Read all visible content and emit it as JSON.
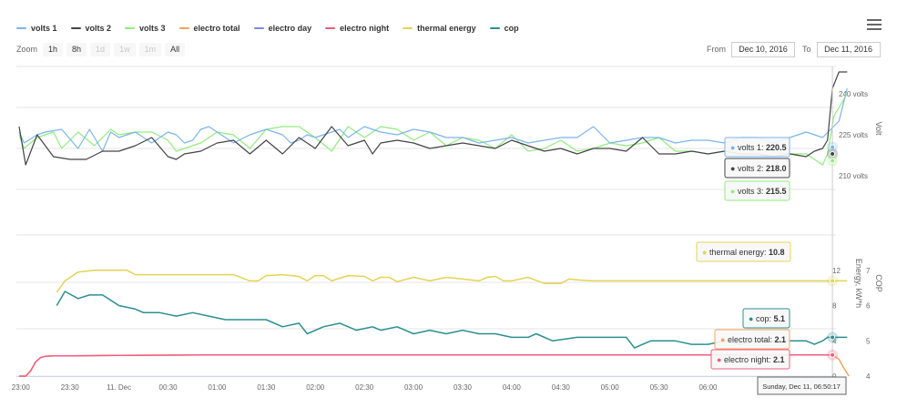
{
  "legend": [
    {
      "label": "volts 1",
      "color": "#7cb5ec"
    },
    {
      "label": "volts 2",
      "color": "#434348"
    },
    {
      "label": "volts 3",
      "color": "#90ed7d"
    },
    {
      "label": "electro total",
      "color": "#f7a35c"
    },
    {
      "label": "electro day",
      "color": "#8085e9"
    },
    {
      "label": "electro night",
      "color": "#f15c80"
    },
    {
      "label": "thermal energy",
      "color": "#e4d354"
    },
    {
      "label": "cop",
      "color": "#2b908f"
    }
  ],
  "zoom": {
    "label": "Zoom",
    "buttons": [
      {
        "label": "1h",
        "enabled": true
      },
      {
        "label": "8h",
        "enabled": true
      },
      {
        "label": "1d",
        "enabled": false
      },
      {
        "label": "1w",
        "enabled": false
      },
      {
        "label": "1m",
        "enabled": false
      },
      {
        "label": "All",
        "enabled": true
      }
    ]
  },
  "range": {
    "from_label": "From",
    "from_value": "Dec 10, 2016",
    "to_label": "To",
    "to_value": "Dec 11, 2016"
  },
  "chart_data": {
    "type": "line",
    "x_tick_labels": [
      "23:00",
      "23:30",
      "11. Dec",
      "00:30",
      "01:00",
      "01:30",
      "02:00",
      "02:30",
      "03:00",
      "03:30",
      "04:00",
      "04:30",
      "05:00",
      "05:30",
      "06:00"
    ],
    "x_range_minutes": [
      -61,
      446
    ],
    "axes": {
      "volt": {
        "title": "Volt",
        "ticks": [
          "210 volts",
          "225 volts",
          "240 volts"
        ],
        "range": [
          205,
          250
        ]
      },
      "energy": {
        "title": "Energy, kW*h",
        "ticks": [
          "0",
          "4",
          "8",
          "12"
        ],
        "range": [
          0,
          16
        ]
      },
      "cop": {
        "title": "COP",
        "ticks": [
          "4",
          "5",
          "6",
          "7"
        ],
        "range": [
          4,
          8
        ]
      }
    },
    "series": [
      {
        "name": "volts 1",
        "axis": "volt",
        "color": "#7cb5ec",
        "x": [
          -61,
          -58,
          -50,
          -45,
          -35,
          -25,
          -18,
          -10,
          -5,
          0,
          5,
          10,
          15,
          20,
          30,
          35,
          40,
          45,
          50,
          55,
          60,
          70,
          80,
          90,
          100,
          105,
          110,
          115,
          120,
          130,
          135,
          140,
          150,
          160,
          170,
          180,
          190,
          200,
          210,
          220,
          230,
          240,
          250,
          260,
          270,
          280,
          290,
          300,
          310,
          320,
          330,
          340,
          350,
          360,
          370,
          380,
          390,
          400,
          410,
          420,
          425,
          430,
          435,
          440,
          445
        ],
        "y": [
          226,
          222,
          225,
          226,
          227,
          220,
          227,
          219,
          226,
          224,
          225,
          226,
          224,
          222,
          226,
          225,
          222,
          223,
          227,
          228,
          226,
          222,
          225,
          227,
          225,
          222,
          223,
          225,
          224,
          226,
          227,
          224,
          228,
          226,
          225,
          227,
          226,
          224,
          224,
          222,
          223,
          224,
          222,
          223,
          224,
          224,
          228,
          222,
          223,
          224,
          224,
          222,
          223,
          223,
          222,
          224,
          224,
          222,
          224,
          226,
          225,
          224,
          227,
          230,
          242
        ]
      },
      {
        "name": "volts 2",
        "axis": "volt",
        "color": "#434348",
        "x": [
          -61,
          -57,
          -50,
          -40,
          -30,
          -20,
          -10,
          0,
          10,
          20,
          30,
          35,
          40,
          50,
          60,
          70,
          80,
          90,
          100,
          110,
          120,
          130,
          140,
          150,
          155,
          160,
          170,
          180,
          190,
          200,
          210,
          220,
          230,
          240,
          250,
          260,
          270,
          280,
          290,
          300,
          310,
          320,
          330,
          340,
          350,
          360,
          370,
          380,
          390,
          400,
          410,
          420,
          425,
          430,
          433,
          436,
          440,
          445
        ],
        "y": [
          228,
          214,
          225,
          217,
          216,
          216,
          219,
          219,
          221,
          224,
          217,
          216,
          218,
          219,
          222,
          223,
          218,
          223,
          218,
          224,
          220,
          228,
          221,
          223,
          218,
          222,
          223,
          222,
          220,
          221,
          222,
          221,
          220,
          223,
          221,
          219,
          220,
          218,
          220,
          220,
          219,
          224,
          218,
          218,
          219,
          218,
          219,
          218,
          218,
          217,
          218,
          217,
          219,
          220,
          223,
          242,
          248,
          248
        ]
      },
      {
        "name": "volts 3",
        "axis": "volt",
        "color": "#90ed7d",
        "x": [
          -61,
          -58,
          -50,
          -40,
          -35,
          -25,
          -15,
          -5,
          0,
          10,
          20,
          30,
          35,
          40,
          50,
          60,
          70,
          80,
          90,
          100,
          110,
          120,
          130,
          140,
          150,
          160,
          170,
          180,
          190,
          200,
          210,
          220,
          230,
          240,
          250,
          260,
          270,
          280,
          290,
          300,
          310,
          320,
          330,
          340,
          350,
          360,
          370,
          380,
          390,
          400,
          410,
          420,
          425,
          430,
          433,
          437,
          445
        ],
        "y": [
          225,
          220,
          224,
          226,
          220,
          226,
          221,
          227,
          225,
          226,
          226,
          223,
          219,
          220,
          222,
          226,
          225,
          220,
          227,
          228,
          228,
          224,
          219,
          228,
          224,
          228,
          227,
          223,
          226,
          221,
          224,
          223,
          220,
          225,
          219,
          220,
          223,
          219,
          220,
          222,
          221,
          222,
          224,
          219,
          219,
          218,
          219,
          221,
          220,
          219,
          218,
          218,
          216,
          214,
          218,
          232,
          240
        ]
      },
      {
        "name": "thermal energy",
        "axis": "energy",
        "color": "#e4d354",
        "x": [
          -38,
          -33,
          -25,
          -15,
          -5,
          5,
          10,
          15,
          60,
          70,
          80,
          85,
          90,
          100,
          110,
          115,
          120,
          125,
          130,
          140,
          150,
          155,
          160,
          165,
          170,
          180,
          190,
          200,
          210,
          220,
          225,
          230,
          235,
          240,
          250,
          260,
          270,
          275,
          280,
          290,
          300,
          310,
          320,
          330,
          340,
          350,
          360,
          370,
          380,
          390,
          400,
          410,
          420,
          425,
          430,
          433,
          436,
          440,
          445
        ],
        "y": [
          9.5,
          10.8,
          11.8,
          12,
          12,
          12,
          11.5,
          11.5,
          11.5,
          11.5,
          10.8,
          10.8,
          11.4,
          11.5,
          11.3,
          10.8,
          11.4,
          11.4,
          10.8,
          11.4,
          11.3,
          10.8,
          11.2,
          11.2,
          10.7,
          11.2,
          10.8,
          11.2,
          11,
          10.8,
          11.2,
          11.3,
          10.8,
          10.8,
          11.2,
          10.5,
          10.5,
          11,
          10.9,
          10.8,
          10.8,
          10.8,
          10.8,
          10.8,
          10.8,
          10.8,
          10.8,
          10.8,
          10.8,
          10.8,
          10.8,
          10.8,
          10.8,
          10.8,
          10.8,
          10.8,
          10.8,
          10.8,
          10.8
        ]
      },
      {
        "name": "cop",
        "axis": "cop",
        "color": "#2b908f",
        "x": [
          -38,
          -33,
          -25,
          -18,
          -10,
          0,
          10,
          15,
          25,
          35,
          45,
          55,
          65,
          75,
          90,
          100,
          110,
          115,
          125,
          135,
          145,
          155,
          160,
          170,
          180,
          190,
          200,
          210,
          220,
          230,
          240,
          250,
          255,
          265,
          280,
          295,
          310,
          315,
          325,
          340,
          350,
          360,
          370,
          380,
          390,
          400,
          410,
          415,
          420,
          425,
          430,
          433,
          436,
          440,
          445
        ],
        "y": [
          6.0,
          6.4,
          6.2,
          6.3,
          6.3,
          6.0,
          5.9,
          5.8,
          5.8,
          5.7,
          5.8,
          5.7,
          5.6,
          5.6,
          5.6,
          5.4,
          5.5,
          5.2,
          5.4,
          5.5,
          5.3,
          5.4,
          5.3,
          5.4,
          5.2,
          5.3,
          5.2,
          5.3,
          5.2,
          5.2,
          5.1,
          5.1,
          5.2,
          5.0,
          5.1,
          5.1,
          5.1,
          4.8,
          5.0,
          5.0,
          4.9,
          4.9,
          5.0,
          4.9,
          5.0,
          5.0,
          5.0,
          5.0,
          5.0,
          4.9,
          5.0,
          5.1,
          5.1,
          5.1,
          5.1
        ]
      },
      {
        "name": "electro total",
        "axis": "energy",
        "color": "#f7a35c",
        "x": [
          -61,
          -57,
          -54,
          -51,
          -48,
          -45,
          -40,
          -30,
          0,
          50,
          100,
          150,
          200,
          250,
          300,
          350,
          400,
          420,
          430,
          436,
          440,
          443,
          446
        ],
        "y": [
          0,
          0,
          0.6,
          1.6,
          2.1,
          2.25,
          2.3,
          2.3,
          2.35,
          2.4,
          2.4,
          2.4,
          2.4,
          2.4,
          2.4,
          2.4,
          2.4,
          2.4,
          2.4,
          2.4,
          1.9,
          0.9,
          0
        ]
      },
      {
        "name": "electro night",
        "axis": "energy",
        "color": "#f15c80",
        "x": [
          -61,
          -57,
          -54,
          -51,
          -48,
          -45,
          -40,
          -30,
          0,
          50,
          100,
          150,
          200,
          250,
          300,
          350,
          400,
          420,
          430,
          436
        ],
        "y": [
          0,
          0,
          0.6,
          1.6,
          2.1,
          2.25,
          2.3,
          2.3,
          2.35,
          2.4,
          2.4,
          2.4,
          2.4,
          2.4,
          2.4,
          2.4,
          2.4,
          2.4,
          2.4,
          2.4
        ]
      }
    ],
    "tooltips": [
      {
        "series": "volts 1",
        "label": "volts 1: ",
        "value": "220.5"
      },
      {
        "series": "volts 2",
        "label": "volts 2: ",
        "value": "218.0"
      },
      {
        "series": "volts 3",
        "label": "volts 3: ",
        "value": "215.5"
      },
      {
        "series": "thermal energy",
        "label": "thermal energy: ",
        "value": "10.8"
      },
      {
        "series": "cop",
        "label": "cop: ",
        "value": "5.1"
      },
      {
        "series": "electro total",
        "label": "electro total: ",
        "value": "2.1"
      },
      {
        "series": "electro night",
        "label": "electro night: ",
        "value": "2.1"
      }
    ],
    "crosshair_label": "Sunday, Dec 11, 06:50:17"
  }
}
